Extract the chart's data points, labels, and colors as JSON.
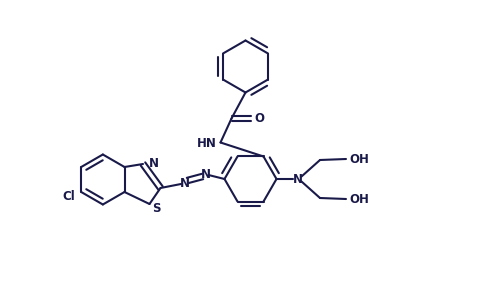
{
  "line_color": "#1a1a4a",
  "bg_color": "#ffffff",
  "lw": 1.5,
  "dbo": 0.055,
  "figsize": [
    4.96,
    2.94
  ],
  "dpi": 100,
  "xlim": [
    0,
    9.6
  ],
  "ylim": [
    0,
    5.88
  ]
}
